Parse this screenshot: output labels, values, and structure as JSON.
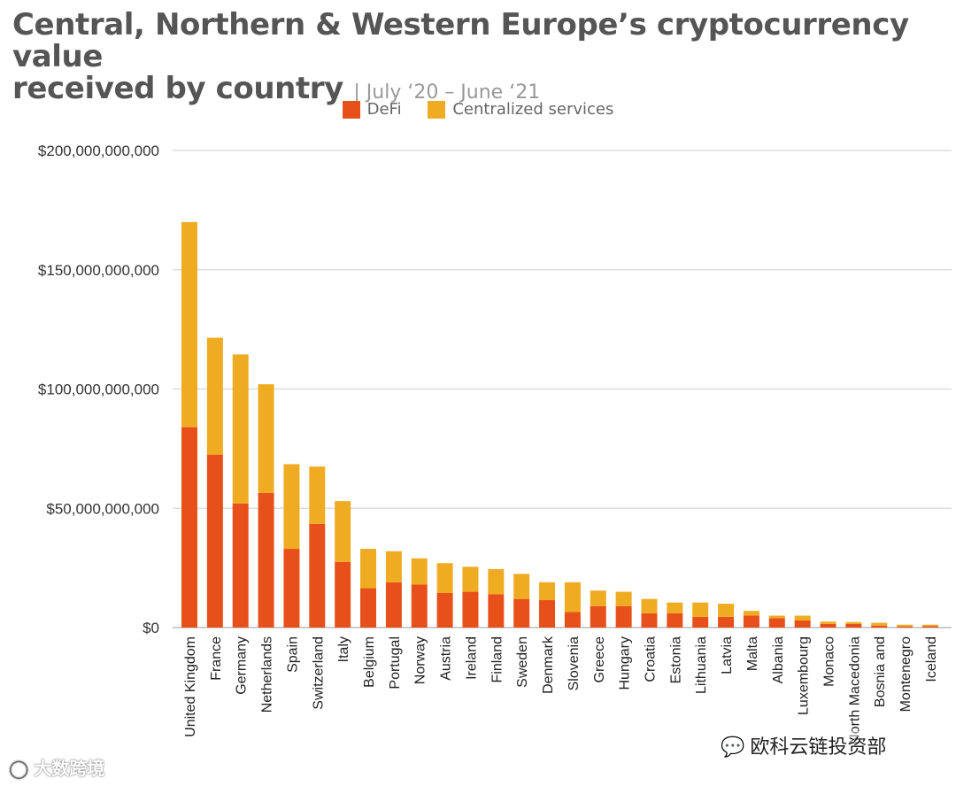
{
  "chart_data": {
    "type": "bar",
    "stacked": true,
    "title": "Central, Northern & Western Europe’s cryptocurrency value received by country",
    "title_line1": "Central, Northern & Western Europe’s cryptocurrency value",
    "title_line2": "received by country",
    "subtitle": "| July ‘20 – June ‘21",
    "xlabel": "",
    "ylabel": "",
    "ylim": [
      0,
      200000000000
    ],
    "yticks": [
      0,
      50000000000,
      100000000000,
      150000000000,
      200000000000
    ],
    "ytick_labels": [
      "$0",
      "$50,000,000,000",
      "$100,000,000,000",
      "$150,000,000,000",
      "$200,000,000,000"
    ],
    "grid": true,
    "legend_position": "top-center",
    "categories": [
      "United Kingdom",
      "France",
      "Germany",
      "Netherlands",
      "Spain",
      "Switzerland",
      "Italy",
      "Belgium",
      "Portugal",
      "Norway",
      "Austria",
      "Ireland",
      "Finland",
      "Sweden",
      "Denmark",
      "Slovenia",
      "Greece",
      "Hungary",
      "Croatia",
      "Estonia",
      "Lithuania",
      "Latvia",
      "Malta",
      "Albania",
      "Luxembourg",
      "Monaco",
      "North Macedonia",
      "Bosnia and",
      "Montenegro",
      "Iceland"
    ],
    "series": [
      {
        "name": "DeFi",
        "color": "#e8501b",
        "values": [
          84000000000,
          72500000000,
          52000000000,
          56500000000,
          33000000000,
          43500000000,
          27500000000,
          16500000000,
          19000000000,
          18000000000,
          14500000000,
          15000000000,
          14000000000,
          12000000000,
          11500000000,
          6500000000,
          9000000000,
          9000000000,
          6000000000,
          6000000000,
          4500000000,
          4500000000,
          5000000000,
          4000000000,
          3000000000,
          1500000000,
          1500000000,
          800000000,
          500000000,
          600000000
        ]
      },
      {
        "name": "Centralized services",
        "color": "#efab22",
        "values": [
          86000000000,
          49000000000,
          62500000000,
          45500000000,
          35500000000,
          24000000000,
          25500000000,
          16500000000,
          13000000000,
          11000000000,
          12500000000,
          10500000000,
          10500000000,
          10500000000,
          7500000000,
          12500000000,
          6500000000,
          6000000000,
          6000000000,
          4500000000,
          6000000000,
          5500000000,
          2000000000,
          1000000000,
          2000000000,
          1000000000,
          800000000,
          1200000000,
          700000000,
          600000000
        ]
      }
    ]
  },
  "watermarks": {
    "left": "大数跨境",
    "right": "欧科云链投资部",
    "right_icon": "wechat-icon"
  }
}
